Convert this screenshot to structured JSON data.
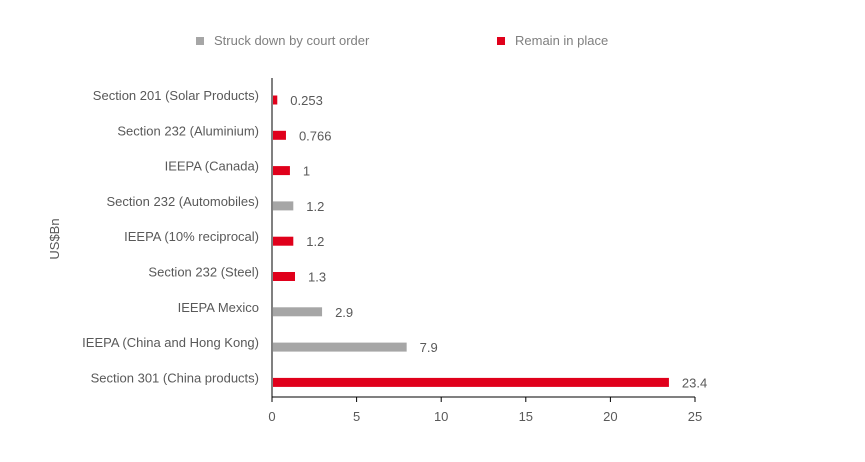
{
  "colors": {
    "struck": "#a6a6a6",
    "remain": "#e0001b",
    "axis": "#000000",
    "text": "#595959"
  },
  "legend": {
    "struck_label": "Struck down by court order",
    "remain_label": "Remain in place"
  },
  "chart_data": {
    "type": "bar",
    "orientation": "horizontal",
    "title": "",
    "ylabel": "US$Bn",
    "xlabel": "",
    "xlim": [
      0,
      25
    ],
    "xticks": [
      0,
      5,
      10,
      15,
      20,
      25
    ],
    "grid": false,
    "legend_position": "top",
    "series": [
      {
        "name": "Struck down by court order",
        "color": "#a6a6a6"
      },
      {
        "name": "Remain in place",
        "color": "#e0001b"
      }
    ],
    "bars": [
      {
        "category": "Section 201 (Solar Products)",
        "value": 0.253,
        "label": "0.253",
        "series": "Remain in place"
      },
      {
        "category": "Section 232 (Aluminium)",
        "value": 0.766,
        "label": "0.766",
        "series": "Remain in place"
      },
      {
        "category": "IEEPA (Canada)",
        "value": 1,
        "label": "1",
        "series": "Remain in place"
      },
      {
        "category": "Section 232 (Automobiles)",
        "value": 1.2,
        "label": "1.2",
        "series": "Struck down by court order"
      },
      {
        "category": "IEEPA (10% reciprocal)",
        "value": 1.2,
        "label": "1.2",
        "series": "Remain in place"
      },
      {
        "category": "Section 232 (Steel)",
        "value": 1.3,
        "label": "1.3",
        "series": "Remain in place"
      },
      {
        "category": "IEEPA Mexico",
        "value": 2.9,
        "label": "2.9",
        "series": "Struck down by court order"
      },
      {
        "category": "IEEPA (China and Hong Kong)",
        "value": 7.9,
        "label": "7.9",
        "series": "Struck down by court order"
      },
      {
        "category": "Section 301 (China products)",
        "value": 23.4,
        "label": "23.4",
        "series": "Remain in place"
      }
    ]
  }
}
